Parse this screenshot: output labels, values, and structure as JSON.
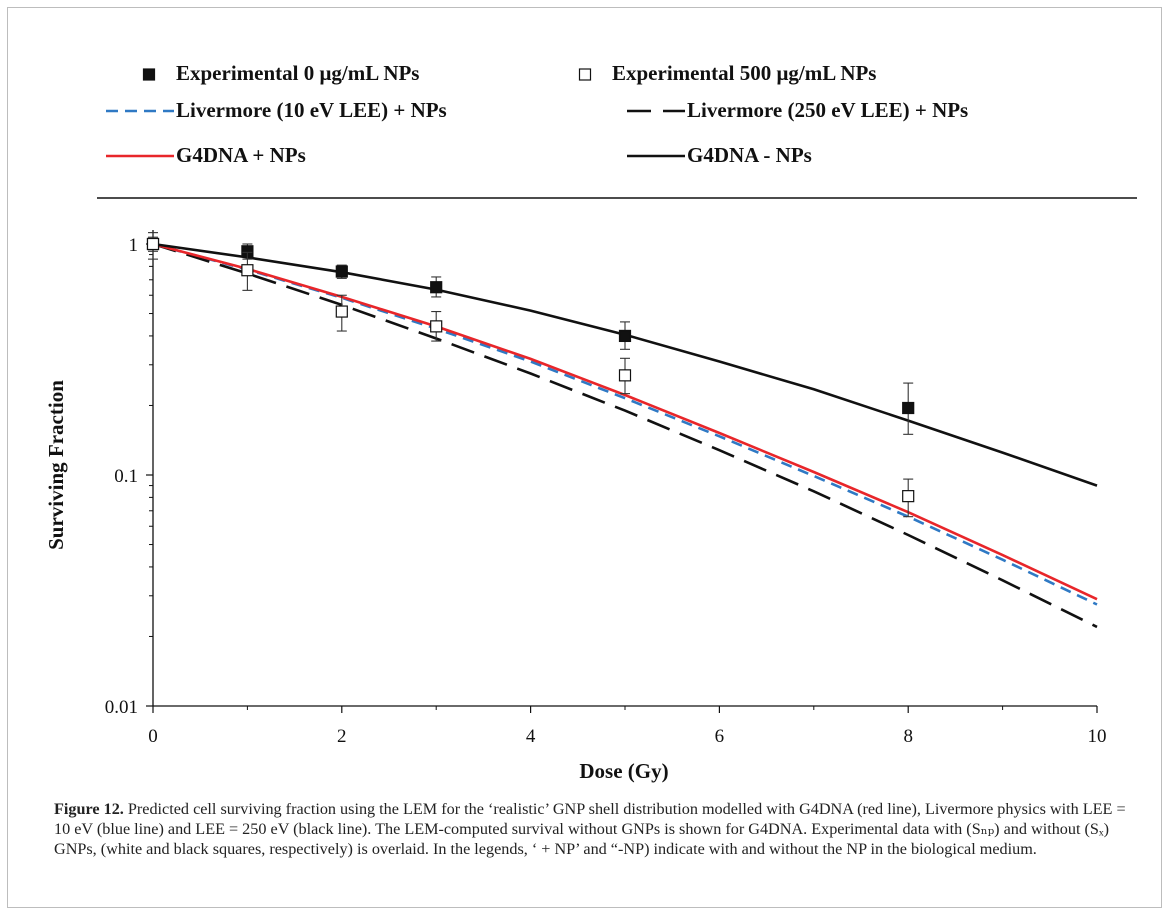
{
  "caption": {
    "label": "Figure 12.",
    "text": " Predicted cell surviving fraction using the LEM for the ‘realistic’ GNP shell distribution modelled with G4DNA (red line), Livermore physics with LEE = 10 eV (blue line) and LEE = 250 eV (black line). The LEM-computed survival without GNPs is shown for G4DNA. Experimental data with (Sₙₚ) and without (Sₓ) GNPs, (white and black squares, respectively) is overlaid. In the legends, ‘ + NP’ and “-NP) indicate with and without the NP in the biological medium."
  },
  "chart_data": {
    "type": "scatter",
    "xlabel": "Dose (Gy)",
    "ylabel": "Surviving Fraction",
    "xlim": [
      0,
      10
    ],
    "ylim": [
      0.01,
      1
    ],
    "yscale": "log",
    "xticks": [
      0,
      2,
      4,
      6,
      8,
      10
    ],
    "yticks": [
      {
        "value": 0.01,
        "label": "0.01"
      },
      {
        "value": 0.1,
        "label": "0.1"
      },
      {
        "value": 1,
        "label": "1"
      }
    ],
    "grid": false,
    "legend_position": "top",
    "series": [
      {
        "name": "Experimental 0 μg/mL NPs",
        "kind": "markers",
        "marker": "filled-square",
        "color": "#111111",
        "x": [
          0,
          1,
          2,
          3,
          5,
          8
        ],
        "y": [
          1.0,
          0.93,
          0.76,
          0.65,
          0.4,
          0.195
        ],
        "err_low": [
          0.93,
          0.86,
          0.71,
          0.59,
          0.35,
          0.15
        ],
        "err_high": [
          1.07,
          1.0,
          0.81,
          0.72,
          0.46,
          0.25
        ]
      },
      {
        "name": "Experimental 500 μg/mL NPs",
        "kind": "markers",
        "marker": "open-square",
        "color": "#111111",
        "x": [
          0,
          1,
          2,
          3,
          5,
          8
        ],
        "y": [
          1.0,
          0.77,
          0.51,
          0.44,
          0.27,
          0.081
        ],
        "err_low": [
          0.86,
          0.63,
          0.42,
          0.38,
          0.225,
          0.066
        ],
        "err_high": [
          1.12,
          0.92,
          0.6,
          0.51,
          0.32,
          0.096
        ]
      },
      {
        "name": "Livermore (10 eV LEE) + NPs",
        "kind": "line",
        "dash": "short",
        "color": "#2f79c4",
        "x": [
          0,
          1,
          2,
          3,
          4,
          5,
          6,
          7,
          8,
          9,
          10
        ],
        "y": [
          1.0,
          0.775,
          0.585,
          0.43,
          0.31,
          0.215,
          0.147,
          0.099,
          0.066,
          0.043,
          0.0275
        ]
      },
      {
        "name": "Livermore (250 eV LEE) + NPs",
        "kind": "line",
        "dash": "long",
        "color": "#111111",
        "x": [
          0,
          1,
          2,
          3,
          4,
          5,
          6,
          7,
          8,
          9,
          10
        ],
        "y": [
          1.0,
          0.745,
          0.545,
          0.39,
          0.275,
          0.19,
          0.128,
          0.085,
          0.055,
          0.035,
          0.022
        ]
      },
      {
        "name": "G4DNA + NPs",
        "kind": "line",
        "dash": "solid",
        "color": "#e8262a",
        "x": [
          0,
          1,
          2,
          3,
          4,
          5,
          6,
          7,
          8,
          9,
          10
        ],
        "y": [
          1.0,
          0.78,
          0.59,
          0.44,
          0.318,
          0.222,
          0.152,
          0.103,
          0.069,
          0.045,
          0.029
        ]
      },
      {
        "name": "G4DNA  - NPs",
        "kind": "line",
        "dash": "solid",
        "color": "#111111",
        "x": [
          0,
          1,
          2,
          3,
          4,
          5,
          6,
          7,
          8,
          9,
          10
        ],
        "y": [
          1.0,
          0.875,
          0.755,
          0.635,
          0.515,
          0.405,
          0.31,
          0.235,
          0.172,
          0.125,
          0.09
        ]
      }
    ]
  }
}
